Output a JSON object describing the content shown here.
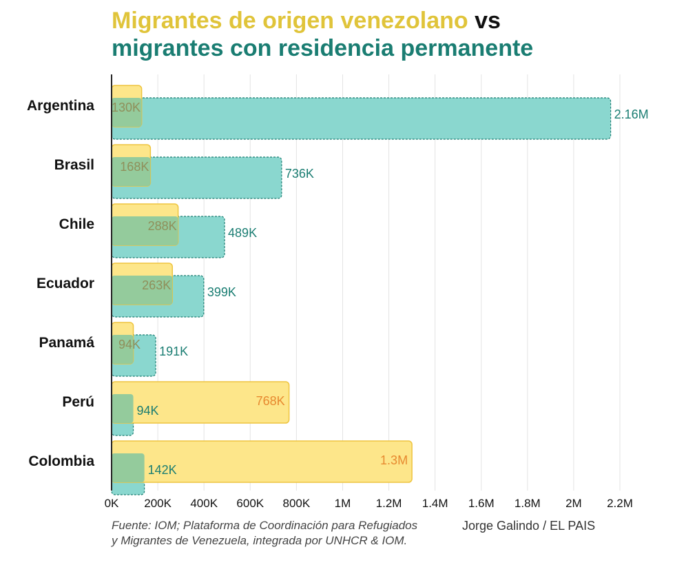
{
  "title": {
    "part1": "Migrantes de origen venezolano",
    "part2": " vs",
    "part3": "migrantes con residencia permanente"
  },
  "colors": {
    "venezuelan_fill": "#fde68a",
    "venezuelan_stroke": "#eec43e",
    "venezuelan_label": "#e7892f",
    "residence_fill": "#8ad7cf",
    "residence_stroke": "#1a7d72",
    "residence_label": "#1a7d72",
    "overlap_fill": "#8ec99d",
    "overlap_label": "#8f8f5a",
    "grid": "#e3e3e3",
    "axis": "#222222"
  },
  "chart_data": {
    "type": "bar",
    "orientation": "horizontal",
    "categories": [
      "Argentina",
      "Brasil",
      "Chile",
      "Ecuador",
      "Panamá",
      "Perú",
      "Colombia"
    ],
    "series": [
      {
        "name": "Migrantes de origen venezolano",
        "values": [
          130000,
          168000,
          288000,
          263000,
          94000,
          768000,
          1300000
        ],
        "labels": [
          "130K",
          "168K",
          "288K",
          "263K",
          "94K",
          "768K",
          "1.3M"
        ]
      },
      {
        "name": "migrantes con residencia permanente",
        "values": [
          2160000,
          736000,
          489000,
          399000,
          191000,
          94000,
          142000
        ],
        "labels": [
          "2.16M",
          "736K",
          "489K",
          "399K",
          "191K",
          "94K",
          "142K"
        ]
      }
    ],
    "x_ticks": [
      0,
      200000,
      400000,
      600000,
      800000,
      1000000,
      1200000,
      1400000,
      1600000,
      1800000,
      2000000,
      2200000
    ],
    "x_tick_labels": [
      "0K",
      "200K",
      "400K",
      "600K",
      "800K",
      "1M",
      "1.2M",
      "1.4M",
      "1.6M",
      "1.8M",
      "2M",
      "2.2M"
    ],
    "xlim": [
      0,
      2200000
    ],
    "grid": true
  },
  "footer": {
    "source_line1": "Fuente: IOM; Plataforma de Coordinación para Refugiados",
    "source_line2": "y Migrantes de Venezuela, integrada por UNHCR & IOM.",
    "author": "Jorge Galindo / EL PAIS"
  }
}
